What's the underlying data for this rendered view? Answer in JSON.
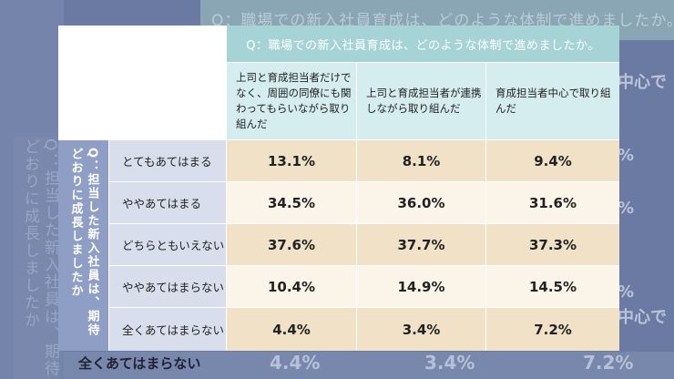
{
  "background": {
    "top_question": "Q：職場での新入社員育成は、どのような体制で進めましたか。",
    "left_question": "Q：担当した新入社員は、期待どおりに成長しましたか",
    "bottom_row_label": "全くあてはまらない",
    "bottom_row_values": [
      "4.4%",
      "3.4%",
      "7.2%"
    ],
    "right_fragments": [
      "中心で",
      "%",
      "%",
      "%",
      "中心で"
    ]
  },
  "table": {
    "top_question": "Q：職場での新入社員育成は、どのような体制で進めましたか。",
    "left_question": "Q：担当した新入社員は、期待どおりに成長しましたか",
    "columns": [
      "上司と育成担当者だけでなく、周囲の同僚にも関わってもらいながら取り組んだ",
      "上司と育成担当者が連携しながら取り組んだ",
      "育成担当者中心で取り組んだ"
    ],
    "rows": [
      {
        "label": "とてもあてはまる",
        "values": [
          "13.1%",
          "8.1%",
          "9.4%"
        ]
      },
      {
        "label": "ややあてはまる",
        "values": [
          "34.5%",
          "36.0%",
          "31.6%"
        ]
      },
      {
        "label": "どちらともいえない",
        "values": [
          "37.6%",
          "37.7%",
          "37.3%"
        ]
      },
      {
        "label": "ややあてはまらない",
        "values": [
          "10.4%",
          "14.9%",
          "14.5%"
        ]
      },
      {
        "label": "全くあてはまらない",
        "values": [
          "4.4%",
          "3.4%",
          "7.2%"
        ]
      }
    ]
  }
}
